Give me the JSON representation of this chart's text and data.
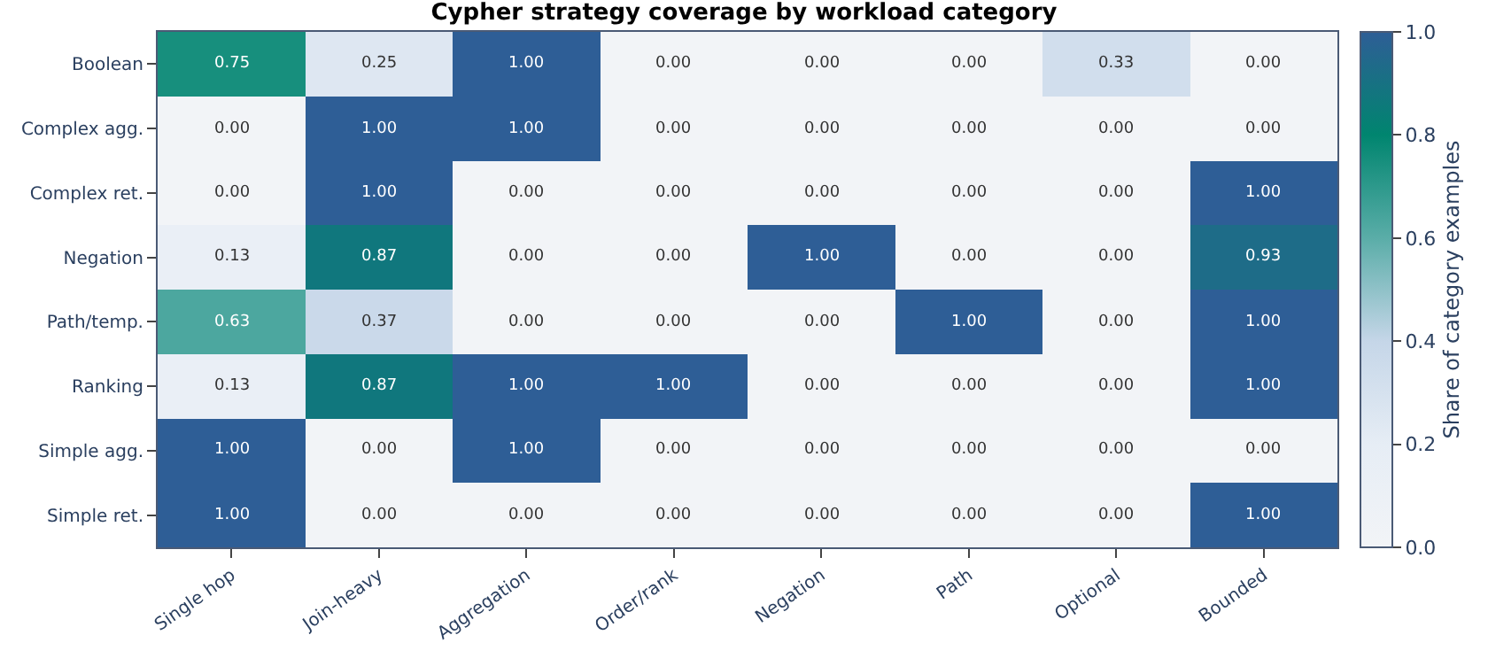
{
  "chart_data": {
    "type": "heatmap",
    "title": "Cypher strategy coverage by workload category",
    "clabel": "Share of category examples",
    "categories": [
      "Single hop",
      "Join-heavy",
      "Aggregation",
      "Order/rank",
      "Negation",
      "Path",
      "Optional",
      "Bounded"
    ],
    "y_categories": [
      "Boolean",
      "Complex agg.",
      "Complex ret.",
      "Negation",
      "Path/temp.",
      "Ranking",
      "Simple agg.",
      "Simple ret."
    ],
    "cells": [
      [
        0.75,
        0.25,
        1.0,
        0.0,
        0.0,
        0.0,
        0.33,
        0.0
      ],
      [
        0.0,
        1.0,
        1.0,
        0.0,
        0.0,
        0.0,
        0.0,
        0.0
      ],
      [
        0.0,
        1.0,
        0.0,
        0.0,
        0.0,
        0.0,
        0.0,
        1.0
      ],
      [
        0.13,
        0.87,
        0.0,
        0.0,
        1.0,
        0.0,
        0.0,
        0.93
      ],
      [
        0.63,
        0.37,
        0.0,
        0.0,
        0.0,
        1.0,
        0.0,
        1.0
      ],
      [
        0.13,
        0.87,
        1.0,
        1.0,
        0.0,
        0.0,
        0.0,
        1.0
      ],
      [
        1.0,
        0.0,
        1.0,
        0.0,
        0.0,
        0.0,
        0.0,
        0.0
      ],
      [
        1.0,
        0.0,
        0.0,
        0.0,
        0.0,
        0.0,
        0.0,
        1.0
      ]
    ],
    "cell_labels": [
      [
        "0.75",
        "0.25",
        "1.00",
        "0.00",
        "0.00",
        "0.00",
        "0.33",
        "0.00"
      ],
      [
        "0.00",
        "1.00",
        "1.00",
        "0.00",
        "0.00",
        "0.00",
        "0.00",
        "0.00"
      ],
      [
        "0.00",
        "1.00",
        "0.00",
        "0.00",
        "0.00",
        "0.00",
        "0.00",
        "1.00"
      ],
      [
        "0.13",
        "0.87",
        "0.00",
        "0.00",
        "1.00",
        "0.00",
        "0.00",
        "0.93"
      ],
      [
        "0.63",
        "0.37",
        "0.00",
        "0.00",
        "0.00",
        "1.00",
        "0.00",
        "1.00"
      ],
      [
        "0.13",
        "0.87",
        "1.00",
        "1.00",
        "0.00",
        "0.00",
        "0.00",
        "1.00"
      ],
      [
        "1.00",
        "0.00",
        "1.00",
        "0.00",
        "0.00",
        "0.00",
        "0.00",
        "0.00"
      ],
      [
        "1.00",
        "0.00",
        "0.00",
        "0.00",
        "0.00",
        "0.00",
        "0.00",
        "1.00"
      ]
    ],
    "clim": [
      0,
      1
    ],
    "cticks": [
      {
        "value": 0,
        "label": "0.0"
      },
      {
        "value": 0.2,
        "label": "0.2"
      },
      {
        "value": 0.4,
        "label": "0.4"
      },
      {
        "value": 0.6,
        "label": "0.6"
      },
      {
        "value": 0.8,
        "label": "0.8"
      },
      {
        "value": 1,
        "label": "1.0"
      }
    ]
  }
}
